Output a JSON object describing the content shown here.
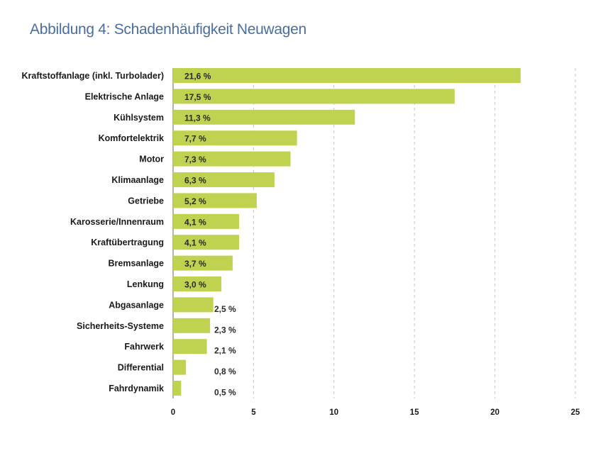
{
  "chart_data": {
    "type": "bar",
    "orientation": "horizontal",
    "title": "Abbildung 4: Schadenhäufigkeit Neuwagen",
    "categories": [
      "Kraftstoffanlage (inkl. Turbolader)",
      "Elektrische Anlage",
      "Kühlsystem",
      "Komfortelektrik",
      "Motor",
      "Klimaanlage",
      "Getriebe",
      "Karosserie/Innenraum",
      "Kraftübertragung",
      "Bremsanlage",
      "Lenkung",
      "Abgasanlage",
      "Sicherheits-Systeme",
      "Fahrwerk",
      "Differential",
      "Fahrdynamik"
    ],
    "values": [
      21.6,
      17.5,
      11.3,
      7.7,
      7.3,
      6.3,
      5.2,
      4.1,
      4.1,
      3.7,
      3.0,
      2.5,
      2.3,
      2.1,
      0.8,
      0.5
    ],
    "value_labels": [
      "21,6 %",
      "17,5 %",
      "11,3 %",
      "7,7 %",
      "7,3 %",
      "6,3 %",
      "5,2 %",
      "4,1 %",
      "4,1 %",
      "3,7 %",
      "3,0 %",
      "2,5 %",
      "2,3 %",
      "2,1 %",
      "0,8 %",
      "0,5 %"
    ],
    "xlim": [
      0,
      25
    ],
    "xticks": [
      0,
      5,
      10,
      15,
      20,
      25
    ],
    "xtick_labels": [
      "0",
      "5",
      "10",
      "15",
      "20",
      "25"
    ],
    "grid": "vertical dashed",
    "bar_color": "#c0d250",
    "grid_color": "#c8c8c8"
  }
}
